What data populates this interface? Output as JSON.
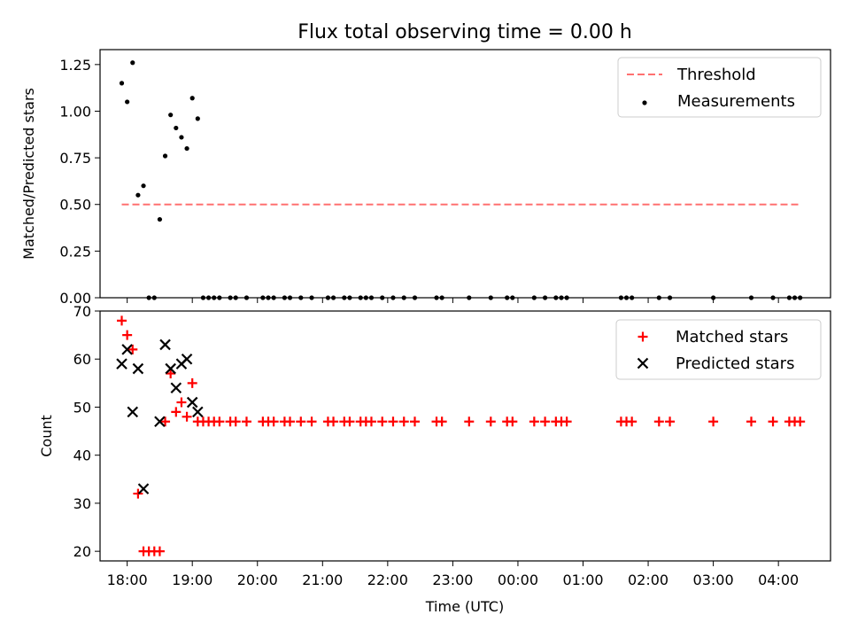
{
  "chart_data": [
    {
      "type": "scatter",
      "title": "Flux total observing time = 0.00 h",
      "ylabel": "Matched/Predicted stars",
      "xlabel": "",
      "ylim": [
        0,
        1.33
      ],
      "yticks": [
        0,
        0.25,
        0.5,
        0.75,
        1.0,
        1.25
      ],
      "ytick_labels": [
        "0.00",
        "0.25",
        "0.50",
        "0.75",
        "1.00",
        "1.25"
      ],
      "legend_position": "top-right",
      "threshold": {
        "name": "Threshold",
        "value": 0.5,
        "x_range": [
          "17:55",
          "04:20"
        ],
        "color": "#ff7070"
      },
      "series": [
        {
          "name": "Measurements",
          "color": "#000000",
          "marker": "dot",
          "points": [
            [
              "17:55",
              1.15
            ],
            [
              "18:00",
              1.05
            ],
            [
              "18:05",
              1.26
            ],
            [
              "18:10",
              0.55
            ],
            [
              "18:15",
              0.6
            ],
            [
              "18:20",
              0.0
            ],
            [
              "18:25",
              0.0
            ],
            [
              "18:30",
              0.42
            ],
            [
              "18:35",
              0.76
            ],
            [
              "18:40",
              0.98
            ],
            [
              "18:45",
              0.91
            ],
            [
              "18:50",
              0.86
            ],
            [
              "18:55",
              0.8
            ],
            [
              "19:00",
              1.07
            ],
            [
              "19:05",
              0.96
            ],
            [
              "19:10",
              0.0
            ],
            [
              "19:15",
              0.0
            ],
            [
              "19:20",
              0.0
            ],
            [
              "19:25",
              0.0
            ],
            [
              "19:35",
              0.0
            ],
            [
              "19:40",
              0.0
            ],
            [
              "19:50",
              0.0
            ],
            [
              "20:05",
              0.0
            ],
            [
              "20:10",
              0.0
            ],
            [
              "20:15",
              0.0
            ],
            [
              "20:25",
              0.0
            ],
            [
              "20:30",
              0.0
            ],
            [
              "20:40",
              0.0
            ],
            [
              "20:50",
              0.0
            ],
            [
              "21:05",
              0.0
            ],
            [
              "21:10",
              0.0
            ],
            [
              "21:20",
              0.0
            ],
            [
              "21:25",
              0.0
            ],
            [
              "21:35",
              0.0
            ],
            [
              "21:40",
              0.0
            ],
            [
              "21:45",
              0.0
            ],
            [
              "21:55",
              0.0
            ],
            [
              "22:05",
              0.0
            ],
            [
              "22:15",
              0.0
            ],
            [
              "22:25",
              0.0
            ],
            [
              "22:45",
              0.0
            ],
            [
              "22:50",
              0.0
            ],
            [
              "23:15",
              0.0
            ],
            [
              "23:35",
              0.0
            ],
            [
              "23:50",
              0.0
            ],
            [
              "23:55",
              0.0
            ],
            [
              "00:15",
              0.0
            ],
            [
              "00:25",
              0.0
            ],
            [
              "00:35",
              0.0
            ],
            [
              "00:40",
              0.0
            ],
            [
              "00:45",
              0.0
            ],
            [
              "01:35",
              0.0
            ],
            [
              "01:40",
              0.0
            ],
            [
              "01:45",
              0.0
            ],
            [
              "02:10",
              0.0
            ],
            [
              "02:20",
              0.0
            ],
            [
              "03:00",
              0.0
            ],
            [
              "03:35",
              0.0
            ],
            [
              "03:55",
              0.0
            ],
            [
              "04:10",
              0.0
            ],
            [
              "04:15",
              0.0
            ],
            [
              "04:20",
              0.0
            ]
          ]
        }
      ]
    },
    {
      "type": "scatter",
      "title": "",
      "xlabel": "Time (UTC)",
      "ylabel": "Count",
      "ylim": [
        18,
        70
      ],
      "yticks": [
        20,
        30,
        40,
        50,
        60,
        70
      ],
      "ytick_labels": [
        "20",
        "30",
        "40",
        "50",
        "60",
        "70"
      ],
      "xticks": [
        "18:00",
        "19:00",
        "20:00",
        "21:00",
        "22:00",
        "23:00",
        "00:00",
        "01:00",
        "02:00",
        "03:00",
        "04:00"
      ],
      "legend_position": "top-right",
      "series": [
        {
          "name": "Matched stars",
          "color": "#ff0000",
          "marker": "plus",
          "points": [
            [
              "17:55",
              68
            ],
            [
              "18:00",
              65
            ],
            [
              "18:05",
              62
            ],
            [
              "18:10",
              32
            ],
            [
              "18:15",
              20
            ],
            [
              "18:20",
              20
            ],
            [
              "18:25",
              20
            ],
            [
              "18:30",
              20
            ],
            [
              "18:35",
              47
            ],
            [
              "18:40",
              57
            ],
            [
              "18:45",
              49
            ],
            [
              "18:50",
              51
            ],
            [
              "18:55",
              48
            ],
            [
              "19:00",
              55
            ],
            [
              "19:05",
              47
            ],
            [
              "19:10",
              47
            ],
            [
              "19:15",
              47
            ],
            [
              "19:20",
              47
            ],
            [
              "19:25",
              47
            ],
            [
              "19:35",
              47
            ],
            [
              "19:40",
              47
            ],
            [
              "19:50",
              47
            ],
            [
              "20:05",
              47
            ],
            [
              "20:10",
              47
            ],
            [
              "20:15",
              47
            ],
            [
              "20:25",
              47
            ],
            [
              "20:30",
              47
            ],
            [
              "20:40",
              47
            ],
            [
              "20:50",
              47
            ],
            [
              "21:05",
              47
            ],
            [
              "21:10",
              47
            ],
            [
              "21:20",
              47
            ],
            [
              "21:25",
              47
            ],
            [
              "21:35",
              47
            ],
            [
              "21:40",
              47
            ],
            [
              "21:45",
              47
            ],
            [
              "21:55",
              47
            ],
            [
              "22:05",
              47
            ],
            [
              "22:15",
              47
            ],
            [
              "22:25",
              47
            ],
            [
              "22:45",
              47
            ],
            [
              "22:50",
              47
            ],
            [
              "23:15",
              47
            ],
            [
              "23:35",
              47
            ],
            [
              "23:50",
              47
            ],
            [
              "23:55",
              47
            ],
            [
              "00:15",
              47
            ],
            [
              "00:25",
              47
            ],
            [
              "00:35",
              47
            ],
            [
              "00:40",
              47
            ],
            [
              "00:45",
              47
            ],
            [
              "01:35",
              47
            ],
            [
              "01:40",
              47
            ],
            [
              "01:45",
              47
            ],
            [
              "02:10",
              47
            ],
            [
              "02:20",
              47
            ],
            [
              "03:00",
              47
            ],
            [
              "03:35",
              47
            ],
            [
              "03:55",
              47
            ],
            [
              "04:10",
              47
            ],
            [
              "04:15",
              47
            ],
            [
              "04:20",
              47
            ]
          ]
        },
        {
          "name": "Predicted stars",
          "color": "#000000",
          "marker": "x",
          "points": [
            [
              "17:55",
              59
            ],
            [
              "18:00",
              62
            ],
            [
              "18:05",
              49
            ],
            [
              "18:10",
              58
            ],
            [
              "18:15",
              33
            ],
            [
              "18:30",
              47
            ],
            [
              "18:35",
              63
            ],
            [
              "18:40",
              58
            ],
            [
              "18:45",
              54
            ],
            [
              "18:50",
              59
            ],
            [
              "18:55",
              60
            ],
            [
              "19:00",
              51
            ],
            [
              "19:05",
              49
            ]
          ]
        }
      ]
    }
  ]
}
